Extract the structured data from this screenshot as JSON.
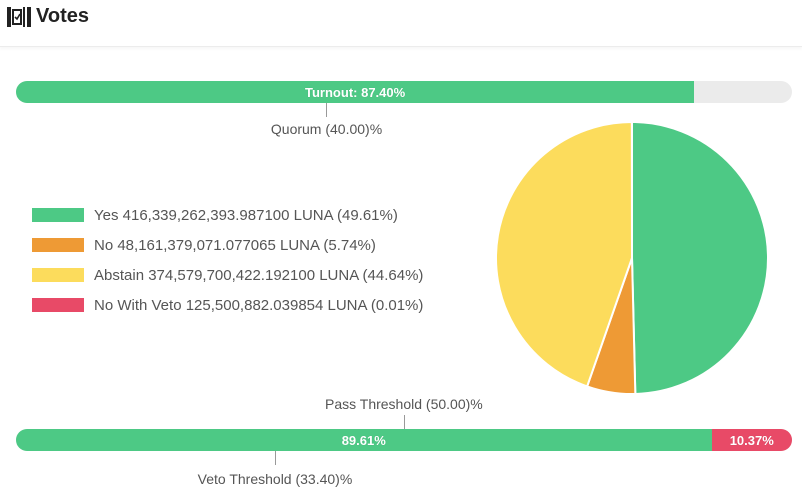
{
  "header": {
    "title": "Votes",
    "icon": "vote-ballot-icon"
  },
  "turnout": {
    "label": "Turnout: 87.40%",
    "value": 87.4,
    "color": "#4dc985",
    "track_color": "#ebebeb"
  },
  "quorum": {
    "label": "Quorum (40.00)%",
    "value": 40.0
  },
  "pass_threshold": {
    "label": "Pass Threshold (50.00)%",
    "value": 50.0
  },
  "veto_threshold": {
    "label": "Veto Threshold (33.40)%",
    "value": 33.4
  },
  "result_bar": {
    "segments": [
      {
        "label": "89.61%",
        "value": 89.61,
        "color": "#4dc985"
      },
      {
        "label": "10.37%",
        "value": 10.37,
        "color": "#e84a67"
      }
    ]
  },
  "chart_data": {
    "type": "pie",
    "title": "",
    "legend_position": "left",
    "series": [
      {
        "name": "Yes",
        "label": "Yes 416,339,262,393.987100 LUNA (49.61%)",
        "value": 49.61,
        "color": "#4dc985"
      },
      {
        "name": "No",
        "label": "No 48,161,379,071.077065 LUNA (5.74%)",
        "value": 5.74,
        "color": "#ee9a35"
      },
      {
        "name": "Abstain",
        "label": "Abstain 374,579,700,422.192100 LUNA (44.64%)",
        "value": 44.64,
        "color": "#fcdc5c"
      },
      {
        "name": "No With Veto",
        "label": "No With Veto 125,500,882.039854 LUNA (0.01%)",
        "value": 0.01,
        "color": "#e84a67"
      }
    ]
  }
}
